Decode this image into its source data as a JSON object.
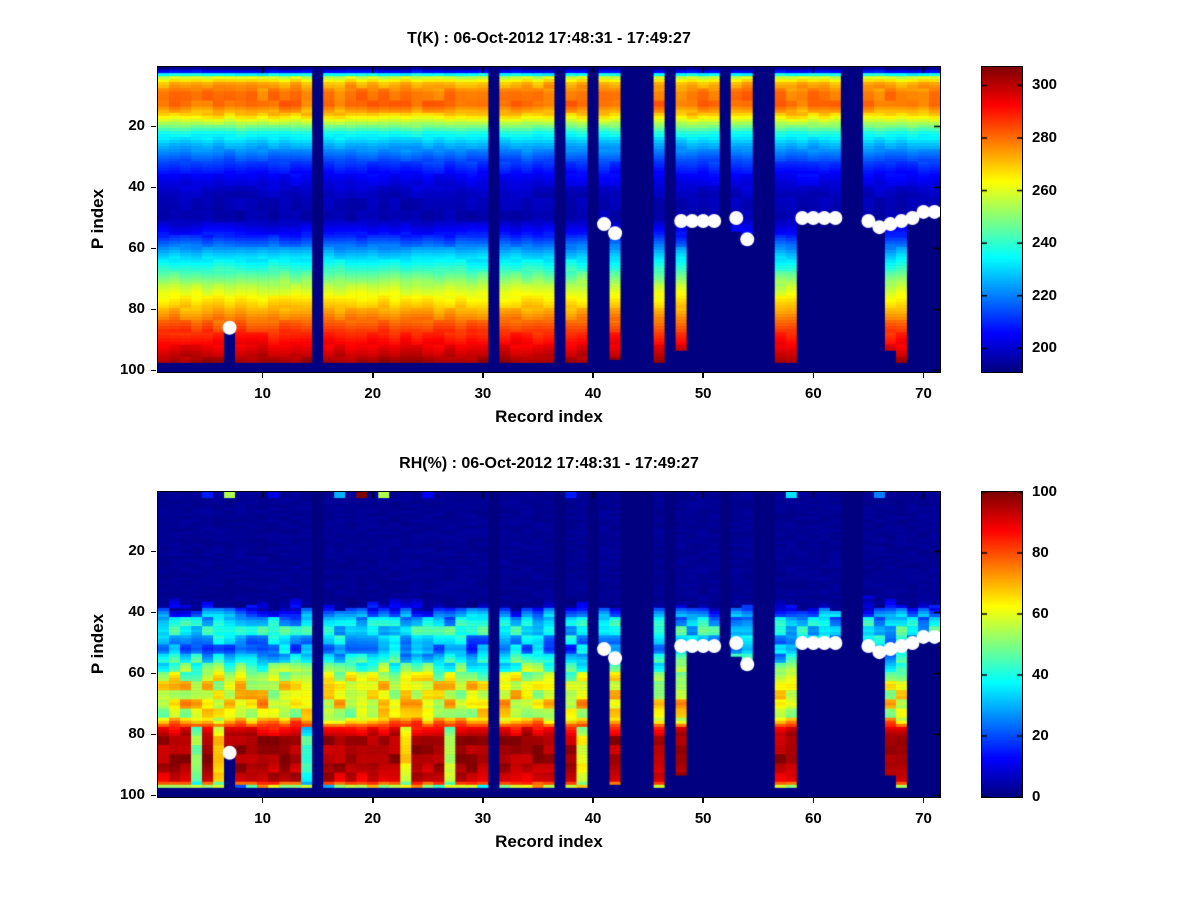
{
  "figure": {
    "background": "#ffffff",
    "frame_color": "#000000",
    "nan_color": "#000080"
  },
  "chart_data": [
    {
      "type": "heatmap",
      "id": "temperature",
      "title": "T(K) : 06-Oct-2012 17:48:31 - 17:49:27",
      "xlabel": "Record index",
      "ylabel": "P index",
      "colormap": "jet",
      "x_range": [
        1,
        71
      ],
      "y_range": [
        1,
        100
      ],
      "y_axis_reversed": true,
      "x_ticks": [
        10,
        20,
        30,
        40,
        50,
        60,
        70
      ],
      "y_ticks": [
        20,
        40,
        60,
        80,
        100
      ],
      "caxis": [
        191,
        307
      ],
      "colorbar_ticks": [
        200,
        220,
        240,
        260,
        280,
        300
      ],
      "profile_anchors": [
        [
          1,
          192
        ],
        [
          2,
          205
        ],
        [
          3,
          235
        ],
        [
          4,
          258
        ],
        [
          6,
          272
        ],
        [
          9,
          279
        ],
        [
          13,
          280
        ],
        [
          16,
          270
        ],
        [
          19,
          254
        ],
        [
          22,
          238
        ],
        [
          26,
          226
        ],
        [
          31,
          214
        ],
        [
          36,
          205
        ],
        [
          42,
          198
        ],
        [
          50,
          196
        ],
        [
          56,
          209
        ],
        [
          62,
          228
        ],
        [
          67,
          241
        ],
        [
          72,
          255
        ],
        [
          77,
          266
        ],
        [
          82,
          276
        ],
        [
          88,
          288
        ],
        [
          93,
          296
        ],
        [
          97,
          303
        ]
      ],
      "missing_records": [
        15,
        31,
        37,
        40,
        43,
        44,
        45,
        47,
        52,
        55,
        56,
        63,
        64
      ],
      "default_last_valid_p": 97,
      "last_valid_p_overrides": {
        "7": 87,
        "41": 53,
        "42": 96,
        "48": 93,
        "49": 52,
        "50": 52,
        "51": 52,
        "53": 54,
        "54": 58,
        "59": 51,
        "60": 51,
        "61": 51,
        "62": 51,
        "65": 52,
        "66": 54,
        "67": 93,
        "68": 97,
        "69": 51,
        "70": 49,
        "71": 49
      },
      "markers": {
        "shape": "circle",
        "color": "#ffffff",
        "radius_px": 7,
        "points": [
          [
            7,
            86
          ],
          [
            41,
            52
          ],
          [
            42,
            55
          ],
          [
            48,
            51
          ],
          [
            49,
            51
          ],
          [
            50,
            51
          ],
          [
            51,
            51
          ],
          [
            53,
            50
          ],
          [
            54,
            57
          ],
          [
            59,
            50
          ],
          [
            60,
            50
          ],
          [
            61,
            50
          ],
          [
            62,
            50
          ],
          [
            65,
            51
          ],
          [
            66,
            53
          ],
          [
            67,
            52
          ],
          [
            68,
            51
          ],
          [
            69,
            50
          ],
          [
            70,
            48
          ],
          [
            71,
            48
          ]
        ]
      },
      "noise": {
        "band_amp": [
          [
            18,
            7
          ],
          [
            55,
            4
          ],
          [
            101,
            5
          ]
        ],
        "row_block": 4
      }
    },
    {
      "type": "heatmap",
      "id": "humidity",
      "title": "RH(%) : 06-Oct-2012 17:48:31 - 17:49:27",
      "xlabel": "Record index",
      "ylabel": "P index",
      "colormap": "jet",
      "x_range": [
        1,
        71
      ],
      "y_range": [
        1,
        100
      ],
      "y_axis_reversed": true,
      "x_ticks": [
        10,
        20,
        30,
        40,
        50,
        60,
        70
      ],
      "y_ticks": [
        20,
        40,
        60,
        80,
        100
      ],
      "caxis": [
        0,
        100
      ],
      "colorbar_ticks": [
        0,
        20,
        40,
        60,
        80,
        100
      ],
      "profile_anchors": [
        [
          1,
          2
        ],
        [
          30,
          2
        ],
        [
          36,
          3
        ],
        [
          38,
          8
        ],
        [
          40,
          20
        ],
        [
          43,
          33
        ],
        [
          46,
          38
        ],
        [
          49,
          30
        ],
        [
          52,
          25
        ],
        [
          55,
          36
        ],
        [
          58,
          46
        ],
        [
          61,
          55
        ],
        [
          64,
          62
        ],
        [
          67,
          60
        ],
        [
          70,
          66
        ],
        [
          72,
          60
        ],
        [
          74,
          58
        ],
        [
          76,
          72
        ],
        [
          78,
          88
        ],
        [
          81,
          96
        ],
        [
          90,
          97
        ],
        [
          95,
          92
        ],
        [
          96,
          80
        ],
        [
          97,
          55
        ]
      ],
      "missing_records": [
        15,
        31,
        37,
        40,
        43,
        44,
        45,
        47,
        52,
        55,
        56,
        63,
        64
      ],
      "default_last_valid_p": 97,
      "last_valid_p_overrides": {
        "7": 87,
        "41": 53,
        "42": 96,
        "48": 93,
        "49": 52,
        "50": 52,
        "51": 52,
        "53": 54,
        "54": 58,
        "59": 51,
        "60": 51,
        "61": 51,
        "62": 51,
        "65": 52,
        "66": 54,
        "67": 93,
        "68": 97,
        "69": 51,
        "70": 49,
        "71": 49
      },
      "markers": {
        "shape": "circle",
        "color": "#ffffff",
        "radius_px": 7,
        "points": [
          [
            7,
            86
          ],
          [
            41,
            52
          ],
          [
            42,
            55
          ],
          [
            48,
            51
          ],
          [
            49,
            51
          ],
          [
            50,
            51
          ],
          [
            51,
            51
          ],
          [
            53,
            50
          ],
          [
            54,
            57
          ],
          [
            59,
            50
          ],
          [
            60,
            50
          ],
          [
            61,
            50
          ],
          [
            62,
            50
          ],
          [
            65,
            51
          ],
          [
            66,
            53
          ],
          [
            67,
            52
          ],
          [
            68,
            51
          ],
          [
            69,
            50
          ],
          [
            70,
            48
          ],
          [
            71,
            48
          ]
        ]
      },
      "top_row_specks": [
        [
          5,
          15
        ],
        [
          7,
          55
        ],
        [
          11,
          10
        ],
        [
          17,
          30
        ],
        [
          19,
          100
        ],
        [
          21,
          55
        ],
        [
          25,
          12
        ],
        [
          38,
          15
        ],
        [
          58,
          35
        ],
        [
          66,
          25
        ]
      ],
      "moist_onset": {
        "base": 37,
        "jitter": 5
      },
      "streaks": {
        "fraction": 0.2,
        "p_from": 78,
        "p_to": 96,
        "depth": [
          28,
          58
        ]
      },
      "bottom_speck_row": 97,
      "noise": {
        "band_amp": [
          [
            101,
            24
          ]
        ],
        "row_block": 3
      }
    }
  ]
}
